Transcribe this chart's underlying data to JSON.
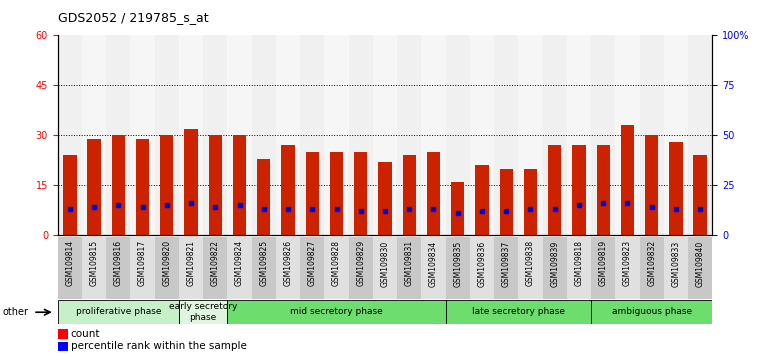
{
  "title": "GDS2052 / 219785_s_at",
  "samples": [
    "GSM109814",
    "GSM109815",
    "GSM109816",
    "GSM109817",
    "GSM109820",
    "GSM109821",
    "GSM109822",
    "GSM109824",
    "GSM109825",
    "GSM109826",
    "GSM109827",
    "GSM109828",
    "GSM109829",
    "GSM109830",
    "GSM109831",
    "GSM109834",
    "GSM109835",
    "GSM109836",
    "GSM109837",
    "GSM109838",
    "GSM109839",
    "GSM109818",
    "GSM109819",
    "GSM109823",
    "GSM109832",
    "GSM109833",
    "GSM109840"
  ],
  "counts": [
    24,
    29,
    30,
    29,
    30,
    32,
    30,
    30,
    23,
    27,
    25,
    25,
    25,
    22,
    24,
    25,
    16,
    21,
    20,
    20,
    27,
    27,
    27,
    33,
    30,
    28,
    24
  ],
  "percentile_ranks": [
    13,
    14,
    15,
    14,
    15,
    16,
    14,
    15,
    13,
    13,
    13,
    13,
    12,
    12,
    13,
    13,
    11,
    12,
    12,
    13,
    13,
    15,
    16,
    16,
    14,
    13,
    13
  ],
  "phases": [
    {
      "label": "proliferative phase",
      "start": 0,
      "end": 5,
      "color": "#c8f0c8"
    },
    {
      "label": "early secretory\nphase",
      "start": 5,
      "end": 7,
      "color": "#e0f5e0"
    },
    {
      "label": "mid secretory phase",
      "start": 7,
      "end": 16,
      "color": "#7de87d"
    },
    {
      "label": "late secretory phase",
      "start": 16,
      "end": 22,
      "color": "#7de87d"
    },
    {
      "label": "ambiguous phase",
      "start": 22,
      "end": 27,
      "color": "#7de87d"
    }
  ],
  "bar_color": "#cc2200",
  "blue_color": "#0000cc",
  "ylim_left": [
    0,
    60
  ],
  "ylim_right": [
    0,
    100
  ],
  "yticks_left": [
    0,
    15,
    30,
    45,
    60
  ],
  "yticks_right": [
    0,
    25,
    50,
    75,
    100
  ],
  "ytick_labels_right": [
    "0",
    "25",
    "50",
    "75",
    "100%"
  ],
  "grid_values": [
    15,
    30,
    45
  ],
  "other_label": "other",
  "bar_width": 0.55
}
